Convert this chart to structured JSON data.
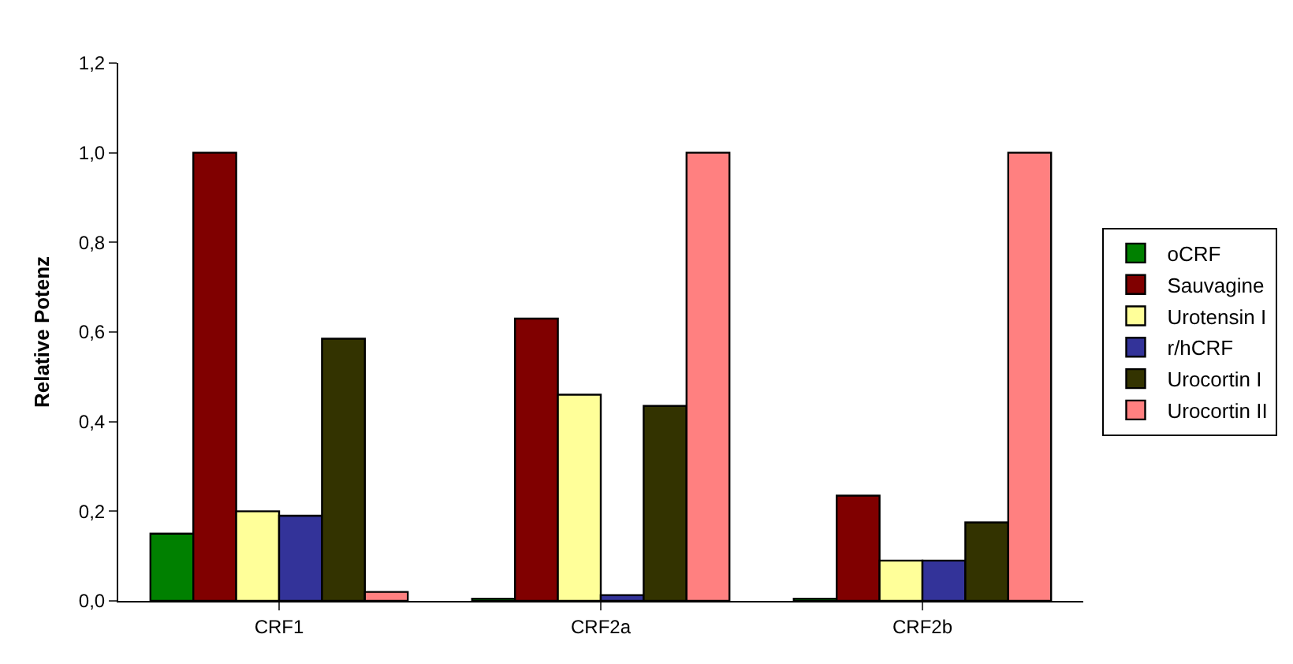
{
  "chart_data": {
    "type": "bar",
    "ylabel": "Relative Potenz",
    "categories": [
      "CRF1",
      "CRF2a",
      "CRF2b"
    ],
    "series": [
      {
        "name": "oCRF",
        "color": "#008000",
        "values": [
          0.15,
          0.005,
          0.005
        ]
      },
      {
        "name": "Sauvagine",
        "color": "#800000",
        "values": [
          1.0,
          0.63,
          0.235
        ]
      },
      {
        "name": "Urotensin I",
        "color": "#ffff99",
        "values": [
          0.2,
          0.46,
          0.09
        ]
      },
      {
        "name": "r/hCRF",
        "color": "#333399",
        "values": [
          0.19,
          0.013,
          0.09
        ]
      },
      {
        "name": "Urocortin I",
        "color": "#333300",
        "values": [
          0.585,
          0.435,
          0.175
        ]
      },
      {
        "name": "Urocortin II",
        "color": "#ff8080",
        "values": [
          0.02,
          1.0,
          1.0
        ]
      }
    ],
    "ylim": [
      0,
      1.2
    ],
    "yticks": [
      {
        "value": 0,
        "label": "0,0"
      },
      {
        "value": 0.2,
        "label": "0,2"
      },
      {
        "value": 0.4,
        "label": "0,4"
      },
      {
        "value": 0.6,
        "label": "0,6"
      },
      {
        "value": 0.8,
        "label": "0,8"
      },
      {
        "value": 1.0,
        "label": "1,0"
      },
      {
        "value": 1.2,
        "label": "1,2"
      }
    ],
    "grid": false,
    "legend": "right"
  }
}
